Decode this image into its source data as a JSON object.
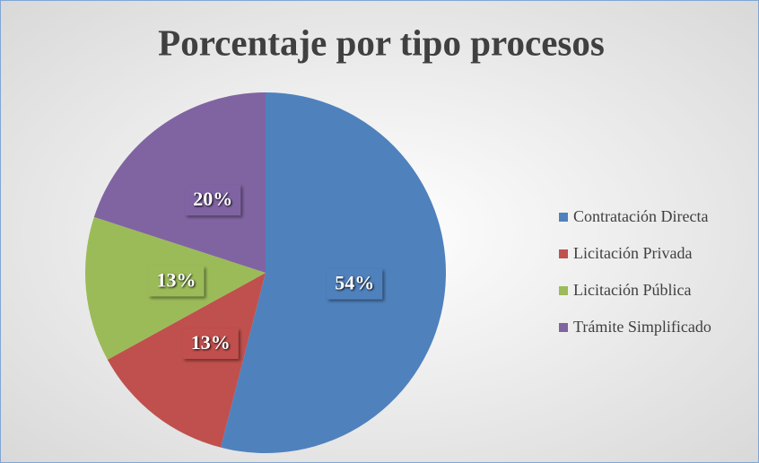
{
  "chart_data": {
    "type": "pie",
    "title": "Porcentaje por tipo procesos",
    "categories": [
      "Contratación Directa",
      "Licitación Privada",
      "Licitación Pública",
      "Trámite Simplificado"
    ],
    "values": [
      54,
      13,
      13,
      20
    ],
    "value_labels": [
      "54%",
      "13%",
      "13%",
      "20%"
    ],
    "colors": [
      "#4f81bd",
      "#c0504d",
      "#9bbb59",
      "#8064a2"
    ],
    "legend": "right"
  }
}
